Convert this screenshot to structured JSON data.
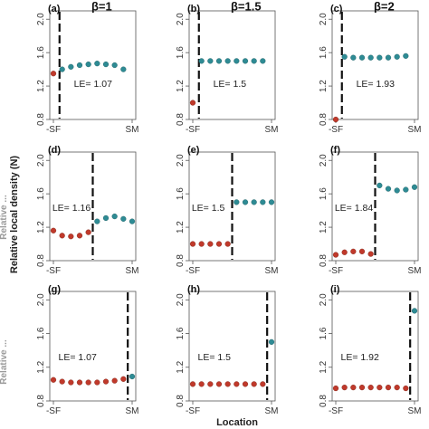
{
  "chart_data": {
    "type": "scatter",
    "ylabel": "Relative local density (N)",
    "xlabel": "Location",
    "row_labels": [
      "",
      "Relative ...",
      "Relative ..."
    ],
    "colors": {
      "before": "#c0392b",
      "after": "#2e8b94",
      "line": "#111111"
    },
    "x_ticks": [
      "-SF",
      "SM"
    ],
    "ylim": [
      0.8,
      2.1
    ],
    "y_ticks": [
      "0.8",
      "1.2",
      "1.6",
      "2.0"
    ],
    "panels": [
      {
        "label": "(a)",
        "beta": "β=1",
        "le_text": "LE= 1.07",
        "threshold": 0.7,
        "left": [
          1.35
        ],
        "right": [
          1.4,
          1.43,
          1.45,
          1.46,
          1.47,
          1.46,
          1.45,
          1.4
        ]
      },
      {
        "label": "(b)",
        "beta": "β=1.5",
        "le_text": "LE= 1.5",
        "threshold": 0.7,
        "left": [
          1.0
        ],
        "right": [
          1.5,
          1.5,
          1.5,
          1.5,
          1.5,
          1.5,
          1.5,
          1.5
        ]
      },
      {
        "label": "(c)",
        "beta": "β=2",
        "le_text": "LE= 1.93",
        "threshold": 0.7,
        "left": [
          0.8
        ],
        "right": [
          1.55,
          1.54,
          1.54,
          1.54,
          1.54,
          1.54,
          1.55,
          1.56
        ]
      },
      {
        "label": "(d)",
        "beta": "",
        "le_text": "LE= 1.16",
        "threshold": 4.5,
        "left": [
          1.16,
          1.1,
          1.09,
          1.1,
          1.14
        ],
        "right": [
          1.27,
          1.31,
          1.33,
          1.3,
          1.27
        ]
      },
      {
        "label": "(e)",
        "beta": "",
        "le_text": "LE= 1.5",
        "threshold": 4.5,
        "left": [
          1.0,
          1.0,
          1.0,
          1.0,
          1.0
        ],
        "right": [
          1.5,
          1.5,
          1.5,
          1.5,
          1.5
        ]
      },
      {
        "label": "(f)",
        "beta": "",
        "le_text": "LE= 1.84",
        "threshold": 4.5,
        "left": [
          0.87,
          0.9,
          0.91,
          0.91,
          0.88
        ],
        "right": [
          1.7,
          1.66,
          1.64,
          1.65,
          1.68
        ]
      },
      {
        "label": "(g)",
        "beta": "",
        "le_text": "LE= 1.07",
        "threshold": 8.5,
        "left": [
          1.05,
          1.03,
          1.02,
          1.02,
          1.02,
          1.02,
          1.03,
          1.04,
          1.06
        ],
        "right": [
          1.09
        ]
      },
      {
        "label": "(h)",
        "beta": "",
        "le_text": "LE= 1.5",
        "threshold": 8.5,
        "left": [
          1.0,
          1.0,
          1.0,
          1.0,
          1.0,
          1.0,
          1.0,
          1.0,
          1.0
        ],
        "right": [
          1.5
        ]
      },
      {
        "label": "(i)",
        "beta": "",
        "le_text": "LE= 1.92",
        "threshold": 8.5,
        "left": [
          0.95,
          0.96,
          0.96,
          0.96,
          0.96,
          0.96,
          0.96,
          0.96,
          0.95
        ],
        "right": [
          1.87
        ]
      }
    ]
  }
}
